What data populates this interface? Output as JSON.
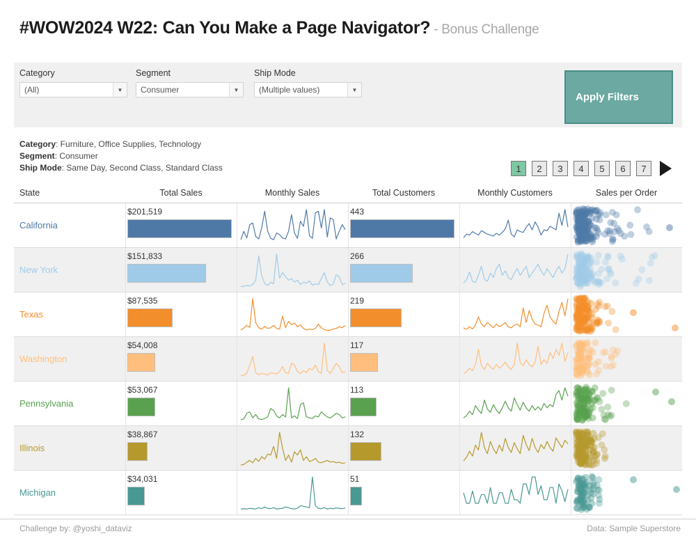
{
  "title": {
    "main": "#WOW2024 W22: Can You Make a Page Navigator?",
    "sub": " - Bonus Challenge"
  },
  "filters": {
    "apply_label": "Apply Filters",
    "controls": [
      {
        "label": "Category",
        "value": "(All)"
      },
      {
        "label": "Segment",
        "value": "Consumer"
      },
      {
        "label": "Ship Mode",
        "value": "(Multiple values)"
      }
    ],
    "dropdown_icon": "▼"
  },
  "summary": [
    {
      "label": "Category",
      "text": ": Furniture, Office Supplies, Technology"
    },
    {
      "label": "Segment",
      "text": ": Consumer"
    },
    {
      "label": "Ship Mode",
      "text": ": Same Day, Second Class, Standard Class"
    }
  ],
  "pagenav": {
    "pages": [
      "1",
      "2",
      "3",
      "4",
      "5",
      "6",
      "7"
    ],
    "active": 0
  },
  "table": {
    "headers": [
      "State",
      "Total Sales",
      "Monthly Sales",
      "Total Customers",
      "Monthly Customers",
      "Sales per Order"
    ]
  },
  "chart_data": {
    "type": "table",
    "title": "#WOW2024 W22: Can You Make a Page Navigator? - Bonus Challenge",
    "columns": [
      "State",
      "Total Sales",
      "Monthly Sales",
      "Total Customers",
      "Monthly Customers",
      "Sales per Order"
    ],
    "max_total_sales": 201519,
    "max_total_customers": 443,
    "states": [
      {
        "name": "California",
        "color": "#4E79A7",
        "total_sales": 201519,
        "total_sales_label": "$201,519",
        "total_customers": 443,
        "total_customers_label": "443",
        "monthly_sales": [
          10,
          35,
          15,
          55,
          60,
          20,
          12,
          45,
          95,
          35,
          14,
          10,
          30,
          25,
          15,
          12,
          35,
          85,
          30,
          14,
          65,
          50,
          100,
          22,
          14,
          90,
          95,
          45,
          100,
          18,
          75,
          70,
          12,
          35,
          55,
          40
        ],
        "monthly_customers": [
          6,
          10,
          9,
          13,
          11,
          9,
          14,
          12,
          10,
          9,
          8,
          11,
          9,
          12,
          16,
          26,
          10,
          7,
          15,
          13,
          12,
          18,
          22,
          15,
          24,
          18,
          9,
          15,
          14,
          19,
          17,
          15,
          34,
          20,
          38,
          18
        ],
        "scatter": {
          "seed": 11,
          "cluster": 150,
          "tail": 30,
          "tail_max": 0.78,
          "outliers": [
            [
              140,
              34
            ]
          ]
        }
      },
      {
        "name": "New York",
        "color": "#A0CBE8",
        "total_sales": 151833,
        "total_sales_label": "$151,833",
        "total_customers": 266,
        "total_customers_label": "266",
        "monthly_sales": [
          3,
          4,
          6,
          5,
          9,
          22,
          95,
          35,
          12,
          6,
          16,
          11,
          100,
          28,
          45,
          32,
          22,
          27,
          16,
          22,
          9,
          16,
          13,
          20,
          7,
          11,
          9,
          27,
          45,
          16,
          6,
          11,
          38,
          32,
          9,
          13
        ],
        "monthly_customers": [
          8,
          14,
          28,
          11,
          9,
          22,
          38,
          15,
          11,
          26,
          18,
          34,
          42,
          22,
          30,
          18,
          14,
          26,
          34,
          22,
          30,
          38,
          18,
          26,
          34,
          42,
          30,
          22,
          34,
          26,
          18,
          30,
          38,
          26,
          34,
          60
        ],
        "scatter": {
          "seed": 22,
          "cluster": 100,
          "tail": 26,
          "tail_max": 0.92,
          "outliers": []
        }
      },
      {
        "name": "Texas",
        "color": "#F28E2B",
        "total_sales": 87535,
        "total_sales_label": "$87,535",
        "total_customers": 219,
        "total_customers_label": "219",
        "monthly_sales": [
          6,
          12,
          20,
          14,
          100,
          28,
          13,
          9,
          17,
          11,
          13,
          20,
          11,
          9,
          48,
          13,
          32,
          22,
          27,
          16,
          22,
          11,
          6,
          9,
          7,
          11,
          24,
          13,
          7,
          5,
          6,
          9,
          11,
          16,
          13,
          20
        ],
        "monthly_customers": [
          8,
          5,
          10,
          6,
          13,
          28,
          15,
          10,
          18,
          13,
          8,
          15,
          10,
          13,
          18,
          10,
          8,
          13,
          15,
          10,
          45,
          18,
          40,
          24,
          15,
          13,
          10,
          35,
          50,
          28,
          20,
          15,
          38,
          55,
          30,
          62
        ],
        "scatter": {
          "seed": 33,
          "cluster": 140,
          "tail": 12,
          "tail_max": 0.42,
          "outliers": [
            [
              88,
              28
            ],
            [
              148,
              50
            ]
          ]
        }
      },
      {
        "name": "Washington",
        "color": "#FFBE7D",
        "total_sales": 54008,
        "total_sales_label": "$54,008",
        "total_customers": 117,
        "total_customers_label": "117",
        "monthly_sales": [
          3,
          4,
          10,
          35,
          60,
          12,
          6,
          10,
          8,
          5,
          12,
          10,
          8,
          15,
          30,
          12,
          10,
          40,
          35,
          15,
          10,
          18,
          12,
          25,
          20,
          35,
          15,
          10,
          100,
          18,
          10,
          25,
          40,
          30,
          12,
          15
        ],
        "monthly_customers": [
          5,
          8,
          14,
          10,
          20,
          45,
          18,
          12,
          22,
          16,
          12,
          20,
          14,
          18,
          24,
          16,
          12,
          20,
          55,
          24,
          18,
          28,
          20,
          16,
          24,
          50,
          20,
          28,
          22,
          40,
          30,
          45,
          35,
          55,
          25,
          40
        ],
        "scatter": {
          "seed": 44,
          "cluster": 90,
          "tail": 12,
          "tail_max": 0.5,
          "outliers": []
        }
      },
      {
        "name": "Pennsylvania",
        "color": "#59A14F",
        "total_sales": 53067,
        "total_sales_label": "$53,067",
        "total_customers": 113,
        "total_customers_label": "113",
        "monthly_sales": [
          4,
          7,
          24,
          28,
          10,
          20,
          7,
          5,
          8,
          13,
          38,
          32,
          16,
          10,
          20,
          13,
          100,
          10,
          16,
          8,
          50,
          55,
          13,
          10,
          8,
          16,
          13,
          28,
          20,
          13,
          10,
          16,
          24,
          20,
          10,
          13
        ],
        "monthly_customers": [
          6,
          10,
          18,
          12,
          28,
          20,
          14,
          38,
          22,
          16,
          30,
          20,
          14,
          24,
          36,
          24,
          18,
          42,
          30,
          20,
          34,
          24,
          18,
          28,
          20,
          26,
          20,
          32,
          24,
          30,
          26,
          48,
          55,
          38,
          60,
          45
        ],
        "scatter": {
          "seed": 55,
          "cluster": 110,
          "tail": 14,
          "tail_max": 0.55,
          "outliers": [
            [
              143,
              28
            ],
            [
              120,
              14
            ]
          ]
        }
      },
      {
        "name": "Illinois",
        "color": "#B6992D",
        "total_sales": 38867,
        "total_sales_label": "$38,867",
        "total_customers": 132,
        "total_customers_label": "132",
        "monthly_sales": [
          2,
          4,
          11,
          16,
          9,
          22,
          13,
          27,
          20,
          35,
          32,
          58,
          22,
          100,
          52,
          16,
          32,
          11,
          42,
          32,
          48,
          16,
          27,
          13,
          16,
          22,
          11,
          9,
          13,
          16,
          11,
          13,
          9,
          11,
          7,
          9
        ],
        "monthly_customers": [
          8,
          14,
          24,
          16,
          34,
          26,
          55,
          30,
          20,
          40,
          28,
          20,
          34,
          24,
          45,
          30,
          22,
          38,
          28,
          20,
          50,
          35,
          25,
          45,
          30,
          22,
          35,
          28,
          40,
          30,
          24,
          46,
          38,
          30,
          42,
          36
        ],
        "scatter": {
          "seed": 66,
          "cluster": 120,
          "tail": 10,
          "tail_max": 0.32,
          "outliers": []
        }
      },
      {
        "name": "Michigan",
        "color": "#499894",
        "total_sales": 34031,
        "total_sales_label": "$34,031",
        "total_customers": 51,
        "total_customers_label": "51",
        "monthly_sales": [
          4,
          5,
          4,
          6,
          5,
          4,
          8,
          5,
          10,
          6,
          5,
          8,
          4,
          5,
          6,
          10,
          8,
          5,
          4,
          6,
          14,
          12,
          10,
          8,
          100,
          14,
          6,
          5,
          8,
          4,
          6,
          5,
          7,
          6,
          5,
          7
        ],
        "monthly_customers": [
          20,
          8,
          8,
          22,
          8,
          8,
          18,
          18,
          8,
          26,
          8,
          8,
          20,
          20,
          8,
          8,
          24,
          12,
          12,
          8,
          30,
          30,
          18,
          38,
          38,
          18,
          28,
          12,
          12,
          26,
          26,
          8,
          30,
          22,
          10,
          24
        ],
        "scatter": {
          "seed": 77,
          "cluster": 80,
          "tail": 6,
          "tail_max": 0.28,
          "outliers": [
            [
              88,
              12
            ],
            [
              150,
              26
            ]
          ]
        }
      }
    ]
  },
  "footer": {
    "left": "Challenge by: @yoshi_dataviz",
    "right": "Data: Sample Superstore"
  },
  "colors": {
    "apply_button": "#6BA9A2",
    "apply_border": "#458D85",
    "active_page": "#7FC7A4",
    "page_bg": "#E9E9E9",
    "panel_bg": "#F0F0F0",
    "row_alt": "#F0F0F0"
  }
}
